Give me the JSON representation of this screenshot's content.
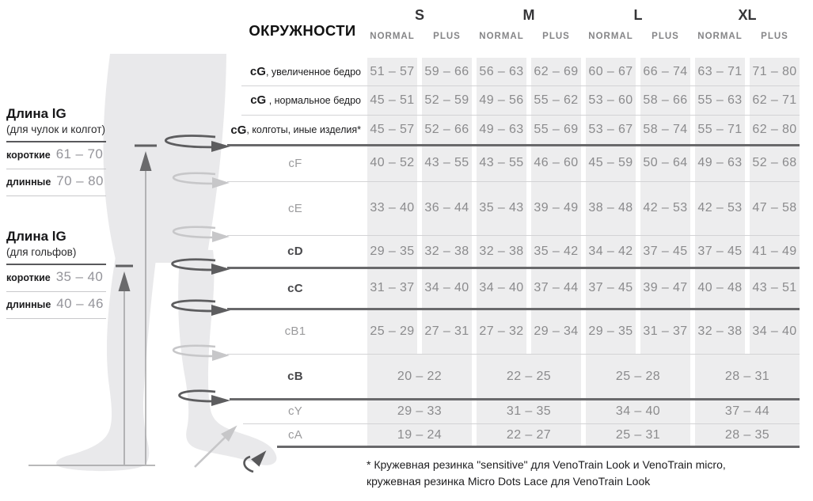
{
  "diagram": {
    "length_blocks": [
      {
        "title": "Длина lG",
        "subtitle": "(для чулок и колгот)",
        "rows": [
          {
            "label": "короткие",
            "value": "61 – 70"
          },
          {
            "label": "длинные",
            "value": "70 – 80"
          }
        ]
      },
      {
        "title": "Длина lG",
        "subtitle": "(для гольфов)",
        "rows": [
          {
            "label": "короткие",
            "value": "35 – 40"
          },
          {
            "label": "длинные",
            "value": "40 – 46"
          }
        ]
      }
    ]
  },
  "table": {
    "corner_label": "ОКРУЖНОСТИ",
    "size_groups": [
      "S",
      "M",
      "L",
      "XL"
    ],
    "fit_labels": [
      "NORMAL",
      "PLUS"
    ],
    "rows": [
      {
        "key": "cG",
        "desc": ", увеличенное бедро",
        "emphasis": "cg",
        "merged": false,
        "values": [
          "51 – 57",
          "59 – 66",
          "56 – 63",
          "62 – 69",
          "60 – 67",
          "66 – 74",
          "63 – 71",
          "71 – 80"
        ]
      },
      {
        "key": "cG",
        "desc": " , нормальное бедро",
        "emphasis": "cg",
        "merged": false,
        "values": [
          "45 – 51",
          "52 – 59",
          "49 – 56",
          "55 – 62",
          "53 – 60",
          "58 – 66",
          "55 – 63",
          "62 – 71"
        ]
      },
      {
        "key": "cG",
        "desc": ", колготы, иные изделия*",
        "emphasis": "cg",
        "merged": false,
        "values": [
          "45 – 57",
          "52 – 66",
          "49 – 63",
          "55 – 69",
          "53 – 67",
          "58 – 74",
          "55 – 71",
          "62 – 80"
        ]
      },
      {
        "key": "cF",
        "emphasis": "light",
        "merged": false,
        "values": [
          "40 – 52",
          "43 – 55",
          "43 – 55",
          "46 – 60",
          "45 – 59",
          "50 – 64",
          "49 – 63",
          "52 – 68"
        ]
      },
      {
        "key": "cE",
        "emphasis": "light",
        "merged": false,
        "values": [
          "33 – 40",
          "36 – 44",
          "35 – 43",
          "39 – 49",
          "38 – 48",
          "42 – 53",
          "42 – 53",
          "47 – 58"
        ]
      },
      {
        "key": "cD",
        "emphasis": "bold",
        "merged": false,
        "values": [
          "29 – 35",
          "32 – 38",
          "32 – 38",
          "35 – 42",
          "34 – 42",
          "37 – 45",
          "37 – 45",
          "41 – 49"
        ]
      },
      {
        "key": "cC",
        "emphasis": "bold",
        "merged": false,
        "values": [
          "31 – 37",
          "34 – 40",
          "34 – 40",
          "37 – 44",
          "37 – 45",
          "39 – 47",
          "40 – 48",
          "43 – 51"
        ]
      },
      {
        "key": "cB1",
        "emphasis": "light",
        "merged": false,
        "values": [
          "25 – 29",
          "27 – 31",
          "27 – 32",
          "29 – 34",
          "29 – 35",
          "31 – 37",
          "32 – 38",
          "34 – 40"
        ]
      },
      {
        "key": "cB",
        "emphasis": "bold",
        "merged": true,
        "values": [
          "20 – 22",
          "22 – 25",
          "25 – 28",
          "28 – 31"
        ]
      },
      {
        "key": "cY",
        "emphasis": "light",
        "merged": true,
        "values": [
          "29 – 33",
          "31 – 35",
          "34 – 40",
          "37 – 44"
        ]
      },
      {
        "key": "cA",
        "emphasis": "light",
        "merged": true,
        "values": [
          "19 – 24",
          "22 – 27",
          "25 – 31",
          "28 – 35"
        ]
      }
    ]
  },
  "footnote": "* Кружевная резинка \"sensitive\" для VenoTrain Look и VenoTrain micro, кружевная резинка Micro Dots Lace для VenoTrain Look",
  "colors": {
    "cell_background": "#ededee",
    "value_text": "#8b8b8d",
    "dark_line": "#69696b",
    "light_line": "#d3d3d5",
    "leg_fill": "#e9e9eb",
    "dark_arrow": "#5d5d5f",
    "light_arrow": "#c7c7c9"
  }
}
